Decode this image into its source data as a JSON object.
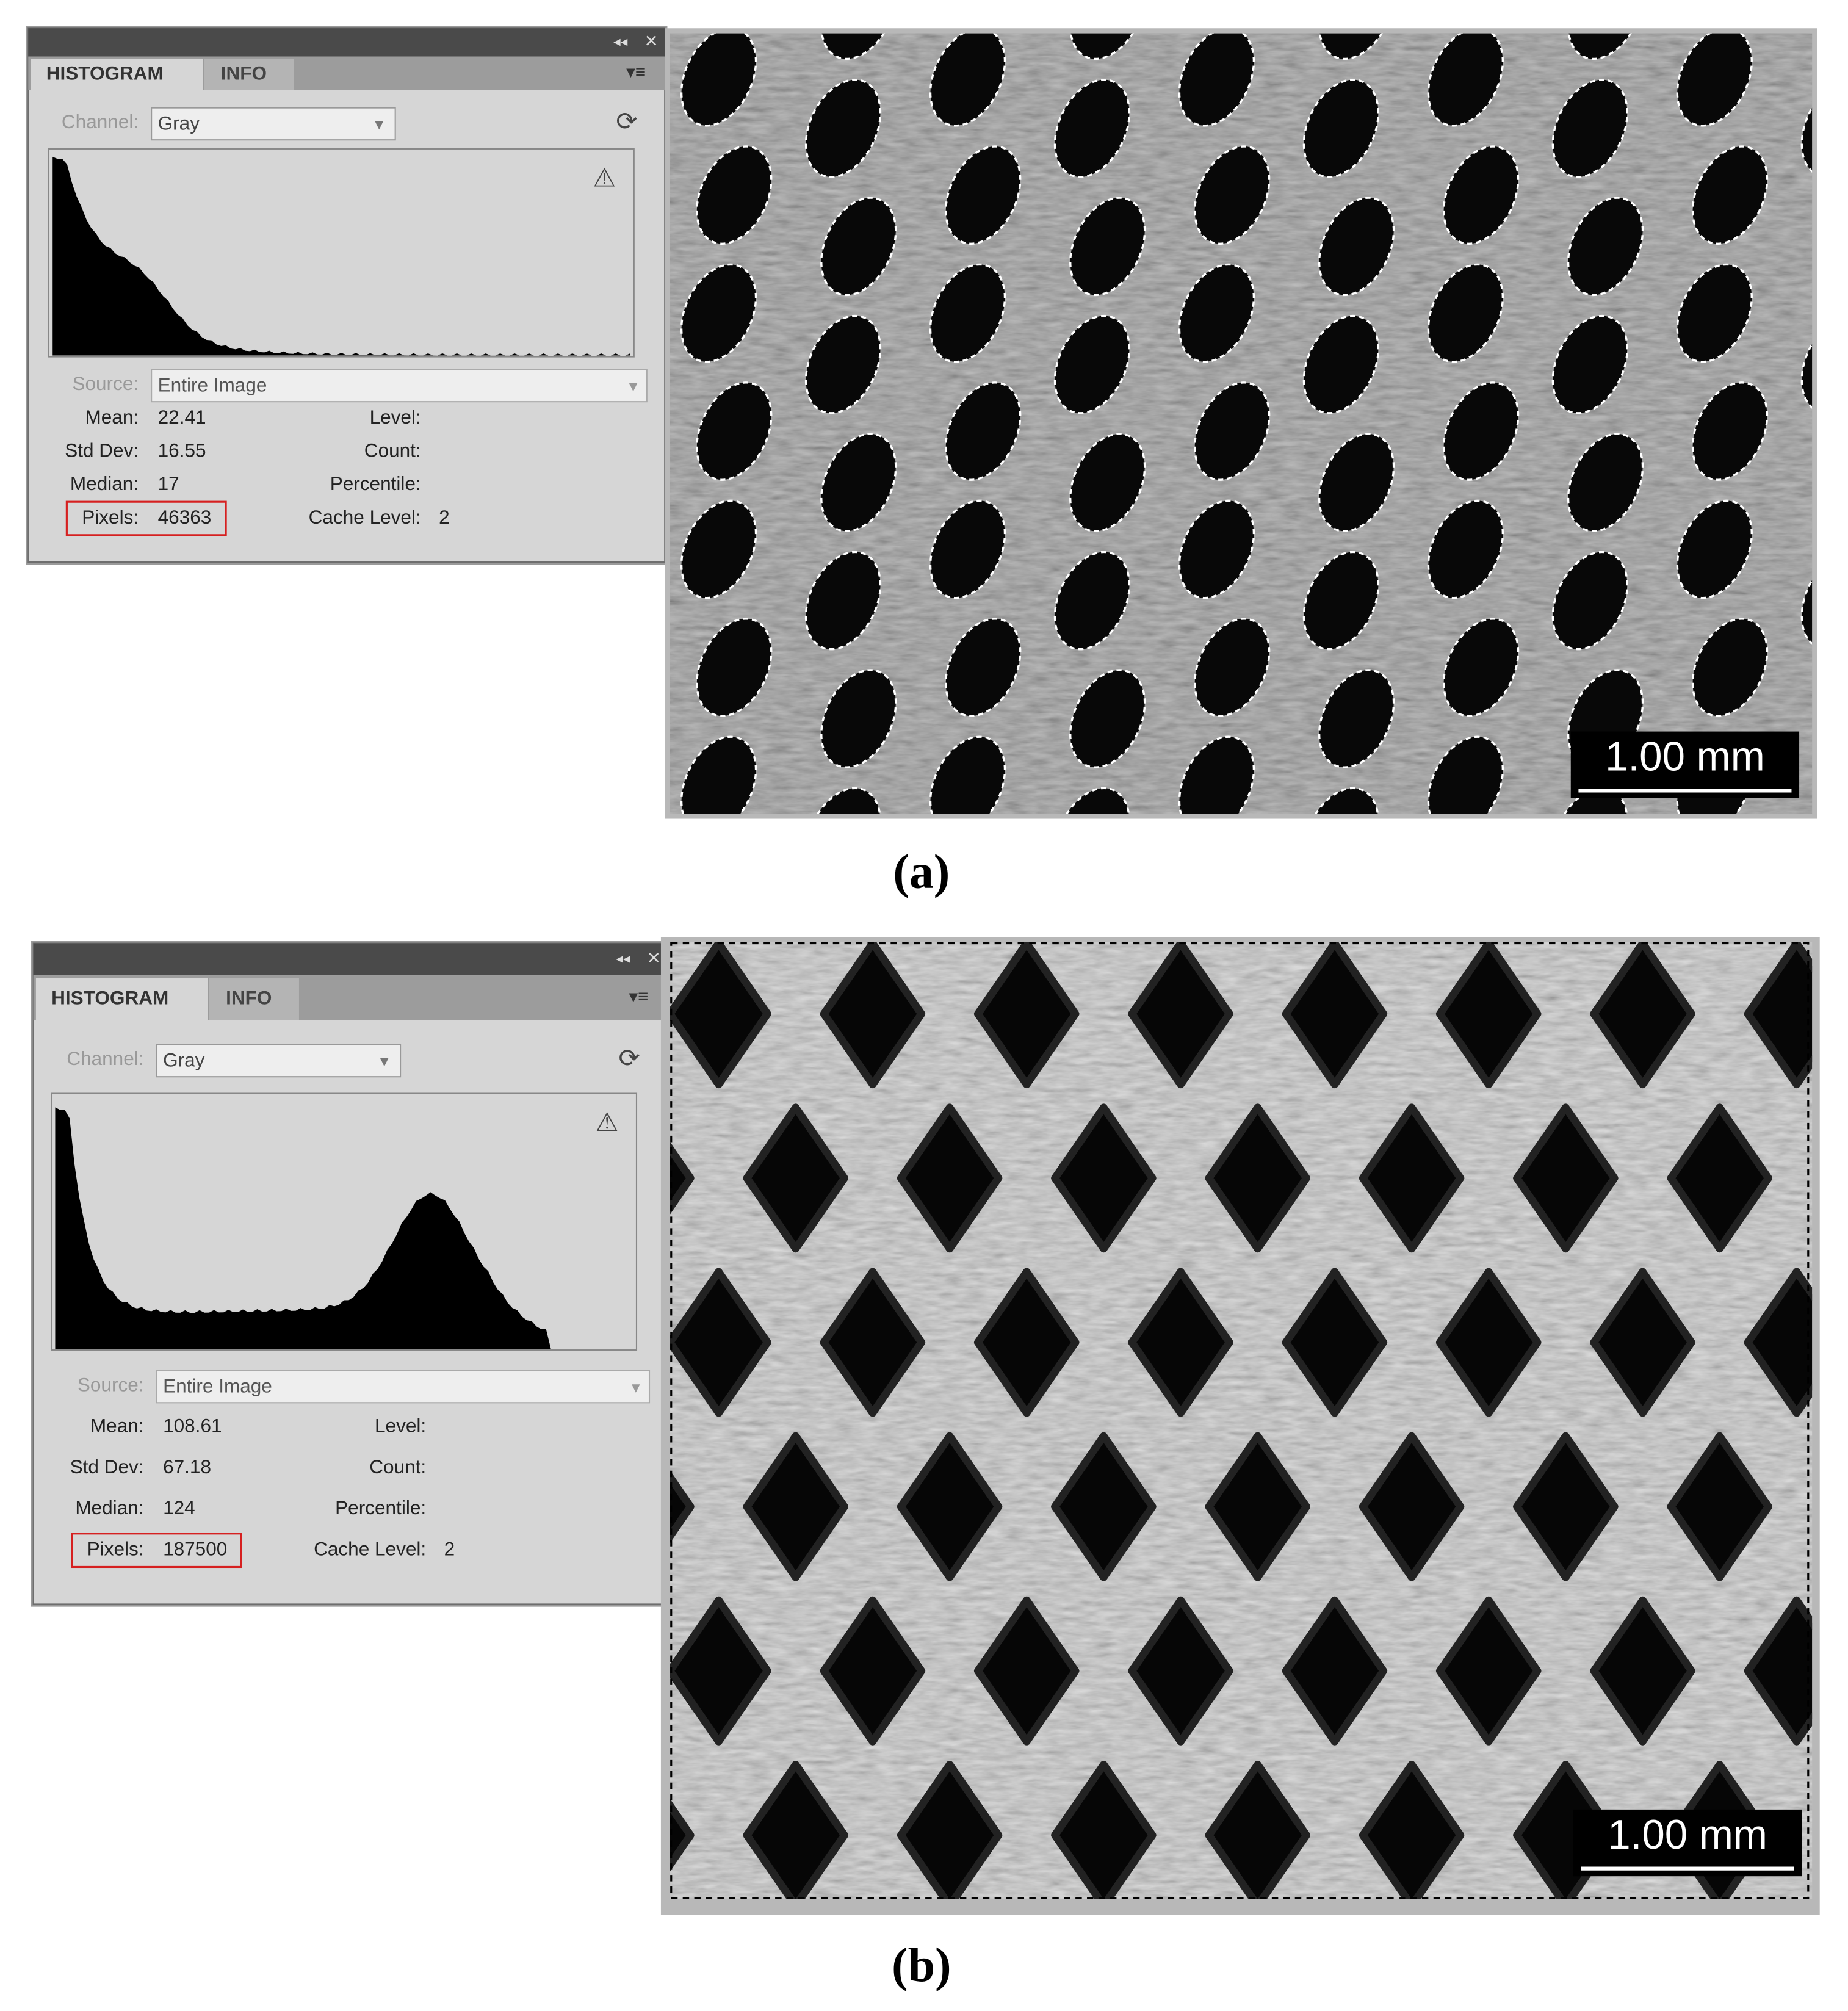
{
  "panels": [
    {
      "tabs": [
        "HISTOGRAM",
        "INFO"
      ],
      "channel_label": "Channel:",
      "channel": "Gray",
      "source_label": "Source:",
      "source": "Entire Image",
      "stats": [
        [
          "Mean:",
          "22.41"
        ],
        [
          "Std Dev:",
          "16.55"
        ],
        [
          "Median:",
          "17"
        ],
        [
          "Pixels:",
          "46363"
        ]
      ],
      "right_labels": [
        "Level:",
        "Count:",
        "Percentile:",
        "Cache Level:"
      ],
      "cache_level": "2",
      "scale_bar": "1.00 mm",
      "caption": "(a)"
    },
    {
      "tabs": [
        "HISTOGRAM",
        "INFO"
      ],
      "channel_label": "Channel:",
      "channel": "Gray",
      "source_label": "Source:",
      "source": "Entire Image",
      "stats": [
        [
          "Mean:",
          "108.61"
        ],
        [
          "Std Dev:",
          "67.18"
        ],
        [
          "Median:",
          "124"
        ],
        [
          "Pixels:",
          "187500"
        ]
      ],
      "right_labels": [
        "Level:",
        "Count:",
        "Percentile:",
        "Cache Level:"
      ],
      "cache_level": "2",
      "scale_bar": "1.00 mm",
      "caption": "(b)"
    }
  ]
}
